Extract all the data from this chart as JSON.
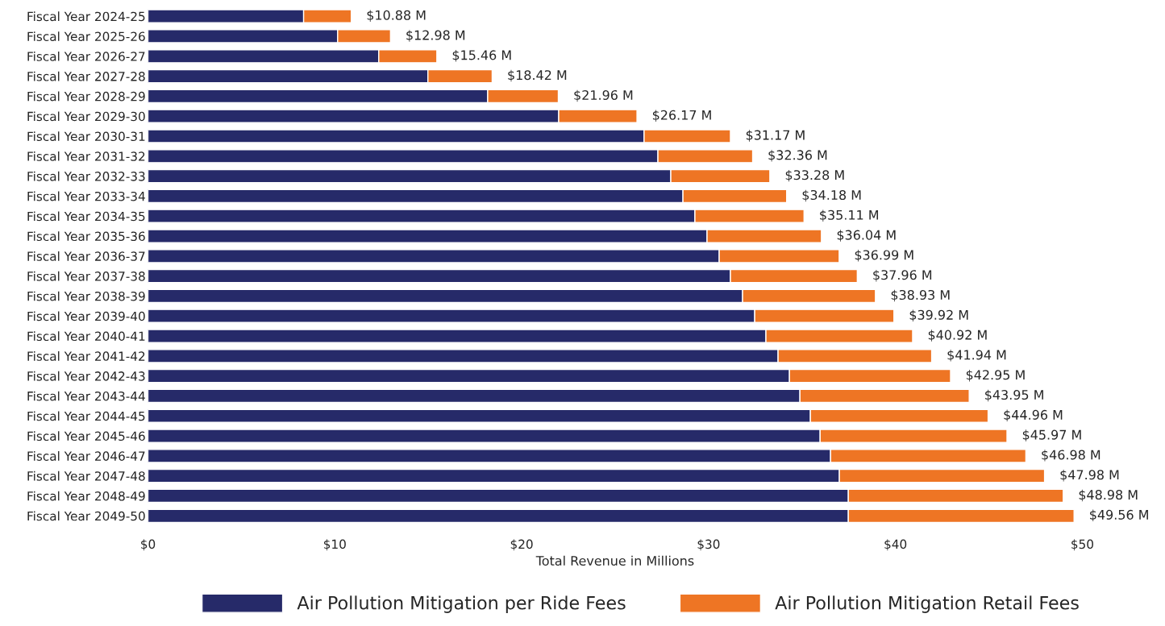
{
  "chart_data": {
    "type": "bar",
    "orientation": "horizontal",
    "stacked": true,
    "xlabel": "Total Revenue in Millions",
    "categories": [
      "Fiscal Year 2024-25",
      "Fiscal Year 2025-26",
      "Fiscal Year 2026-27",
      "Fiscal Year 2027-28",
      "Fiscal Year 2028-29",
      "Fiscal Year 2029-30",
      "Fiscal Year 2030-31",
      "Fiscal Year 2031-32",
      "Fiscal Year 2032-33",
      "Fiscal Year 2033-34",
      "Fiscal Year 2034-35",
      "Fiscal Year 2035-36",
      "Fiscal Year 2036-37",
      "Fiscal Year 2037-38",
      "Fiscal Year 2038-39",
      "Fiscal Year 2039-40",
      "Fiscal Year 2040-41",
      "Fiscal Year 2041-42",
      "Fiscal Year 2042-43",
      "Fiscal Year 2043-44",
      "Fiscal Year 2044-45",
      "Fiscal Year 2045-46",
      "Fiscal Year 2046-47",
      "Fiscal Year 2047-48",
      "Fiscal Year 2048-49",
      "Fiscal Year 2049-50"
    ],
    "series": [
      {
        "name": "Air Pollution Mitigation per Ride Fees",
        "color": "#262a69",
        "values": [
          8.33,
          10.15,
          12.35,
          14.98,
          18.18,
          21.98,
          26.55,
          27.29,
          27.98,
          28.63,
          29.27,
          29.92,
          30.57,
          31.17,
          31.82,
          32.47,
          33.07,
          33.72,
          34.33,
          34.89,
          35.45,
          35.97,
          36.53,
          37.0,
          37.48,
          37.48
        ]
      },
      {
        "name": "Air Pollution Mitigation Retail Fees",
        "color": "#ee7524",
        "values": [
          2.55,
          2.83,
          3.11,
          3.44,
          3.78,
          4.19,
          4.62,
          5.07,
          5.3,
          5.55,
          5.84,
          6.12,
          6.42,
          6.79,
          7.11,
          7.45,
          7.85,
          8.22,
          8.62,
          9.06,
          9.51,
          10.0,
          10.45,
          10.98,
          11.5,
          12.08
        ]
      }
    ],
    "totals": [
      "$10.88 M",
      "$12.98 M",
      "$15.46 M",
      "$18.42 M",
      "$21.96 M",
      "$26.17 M",
      "$31.17 M",
      "$32.36 M",
      "$33.28 M",
      "$34.18 M",
      "$35.11 M",
      "$36.04 M",
      "$36.99 M",
      "$37.96 M",
      "$38.93 M",
      "$39.92 M",
      "$40.92 M",
      "$41.94 M",
      "$42.95 M",
      "$43.95 M",
      "$44.96 M",
      "$45.97 M",
      "$46.98 M",
      "$47.98 M",
      "$48.98 M",
      "$49.56 M"
    ],
    "xlim": [
      0,
      50
    ],
    "xticks": [
      {
        "value": 0,
        "label": "$0"
      },
      {
        "value": 10,
        "label": "$10"
      },
      {
        "value": 20,
        "label": "$20"
      },
      {
        "value": 30,
        "label": "$30"
      },
      {
        "value": 40,
        "label": "$40"
      },
      {
        "value": 50,
        "label": "$50"
      }
    ],
    "grid": false,
    "legend": "bottom"
  }
}
